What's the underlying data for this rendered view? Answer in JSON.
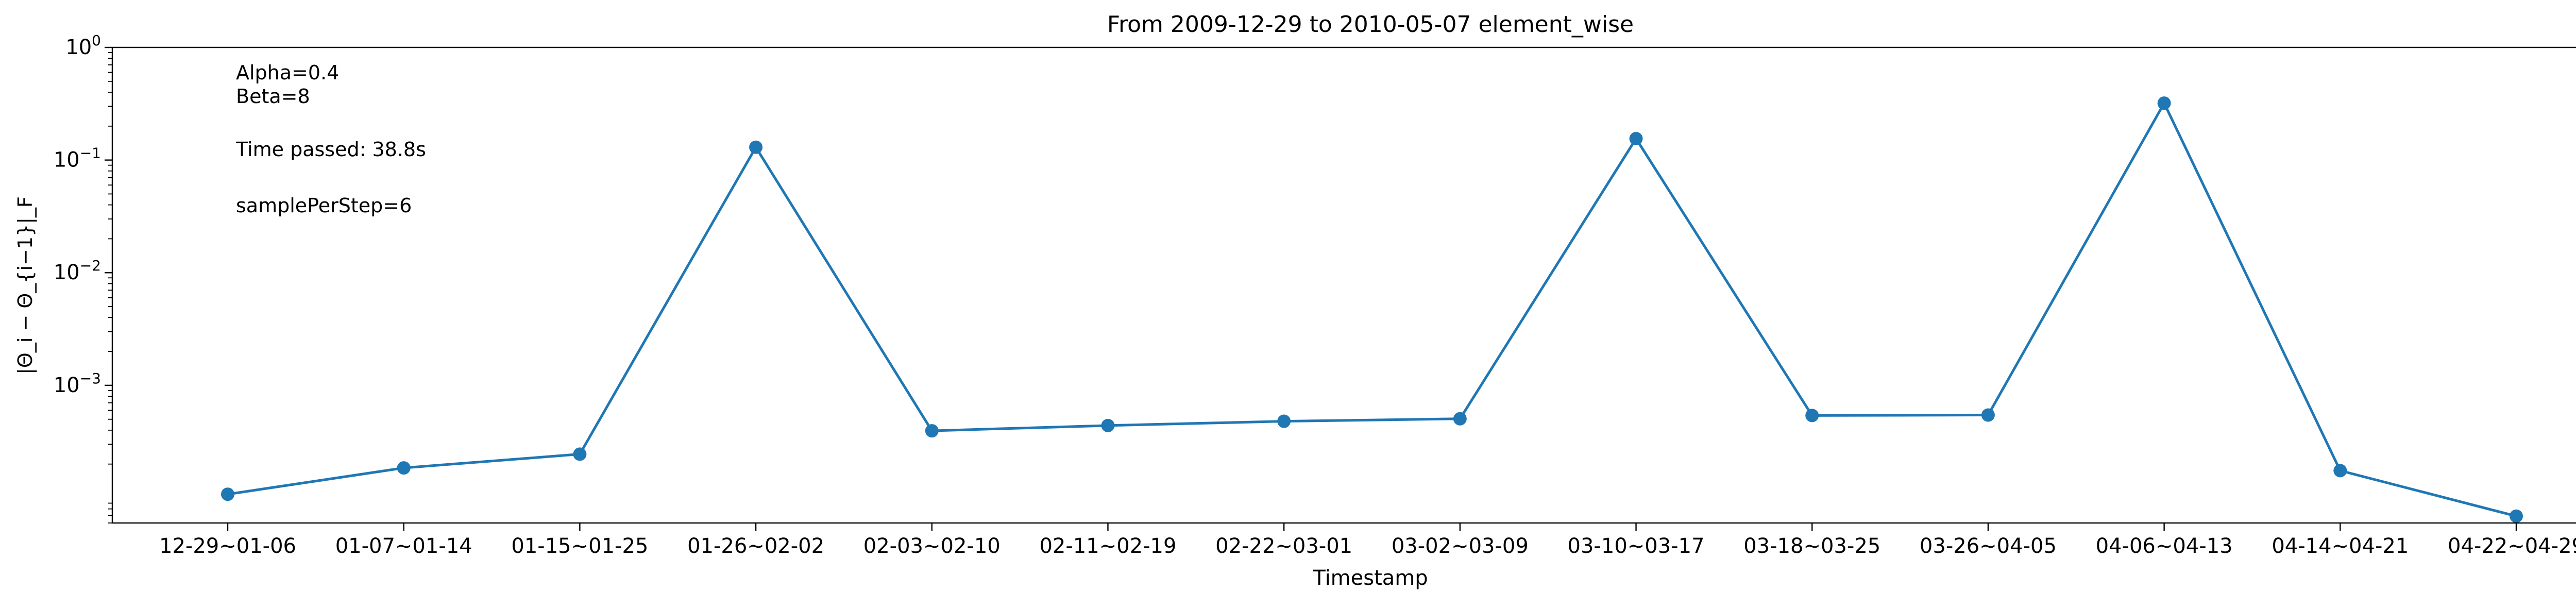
{
  "chart_data": {
    "type": "line",
    "title": "From 2009-12-29 to 2010-05-07 element_wise",
    "xlabel": "Timestamp",
    "ylabel": "|Θ_i − Θ_{i−1}|_F",
    "yscale": "log",
    "ylim": [
      6e-05,
      1.0
    ],
    "grid": false,
    "legend": "none",
    "series_color": "#1f77b4",
    "categories": [
      "12-29~01-06",
      "01-07~01-14",
      "01-15~01-25",
      "01-26~02-02",
      "02-03~02-10",
      "02-11~02-19",
      "02-22~03-01",
      "03-02~03-09",
      "03-10~03-17",
      "03-18~03-25",
      "03-26~04-05",
      "04-06~04-13",
      "04-14~04-21",
      "04-22~04-29"
    ],
    "series": [
      {
        "values": [
          0.000108,
          0.000185,
          0.000245,
          0.13,
          0.000395,
          0.00044,
          0.00048,
          0.000505,
          0.155,
          0.00054,
          0.000545,
          0.32,
          0.000175,
          6.9e-05
        ]
      }
    ],
    "ytick_labels": [
      {
        "base": "10",
        "exp": "0",
        "value": 1
      },
      {
        "base": "10",
        "exp": "−1",
        "value": 0.1
      },
      {
        "base": "10",
        "exp": "−2",
        "value": 0.01
      },
      {
        "base": "10",
        "exp": "−3",
        "value": 0.001
      }
    ],
    "annotations": [
      "Alpha=0.4",
      "Beta=8",
      "Time passed: 38.8s",
      "samplePerStep=6"
    ]
  }
}
